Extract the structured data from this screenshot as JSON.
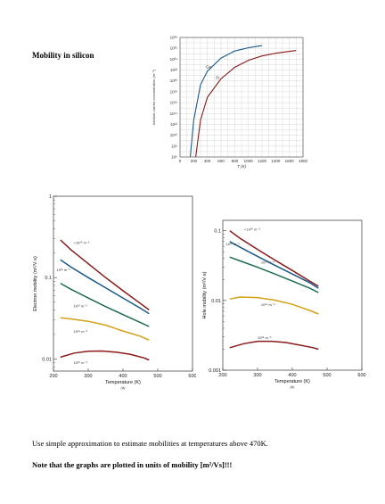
{
  "heading": "Mobility in silicon",
  "notes": {
    "line1": "Use simple approximation to estimate mobilities at temperatures above 470K.",
    "line2": "Note that the graphs are plotted in units of mobility [m²/Vs]!!!"
  },
  "chart_data": [
    {
      "type": "line",
      "title": "",
      "xlabel": "T (K)",
      "ylabel": "Intrinsic carrier concentration (m⁻³)",
      "xlim": [
        0,
        1800
      ],
      "ylim_log10": [
        6,
        28
      ],
      "x_ticks": [
        "0",
        "200",
        "400",
        "600",
        "800",
        "1000",
        "1200",
        "1400",
        "1600",
        "1800"
      ],
      "y_ticks": [
        "10⁶",
        "10⁸",
        "10¹⁰",
        "10¹²",
        "10¹⁴",
        "10¹⁶",
        "10¹⁸",
        "10²⁰",
        "10²²",
        "10²⁴",
        "10²⁶",
        "10²⁸"
      ],
      "series": [
        {
          "name": "Ge",
          "color": "#1a5a8a",
          "x": [
            150,
            200,
            300,
            400,
            600,
            800,
            1000,
            1200
          ],
          "log10_y": [
            6,
            12.7,
            19.3,
            21.8,
            24.2,
            25.5,
            26.1,
            26.5
          ]
        },
        {
          "name": "Si",
          "color": "#8b1a1a",
          "x": [
            230,
            300,
            400,
            600,
            800,
            1000,
            1200,
            1400,
            1700
          ],
          "log10_y": [
            6,
            12.8,
            17.0,
            20.4,
            22.5,
            23.8,
            24.6,
            25.1,
            25.6
          ]
        }
      ]
    },
    {
      "type": "line",
      "title": "",
      "caption": "(a)",
      "xlabel": "Temperature (K)",
      "ylabel": "Electron mobility (m²/V·s)",
      "xlim": [
        200,
        600
      ],
      "ylim_log10": [
        -2.15,
        0
      ],
      "x_ticks": [
        "200",
        "300",
        "400",
        "500",
        "600"
      ],
      "y_ticks": [
        "1",
        "0.1",
        "0.01"
      ],
      "series": [
        {
          "name": "<10²⁰ m⁻³",
          "color": "#8b1a1a",
          "x": [
            220,
            250,
            300,
            350,
            400,
            450,
            475
          ],
          "y": [
            0.29,
            0.22,
            0.148,
            0.1,
            0.069,
            0.048,
            0.04
          ]
        },
        {
          "name": "10²² m⁻³",
          "color": "#1a5a8a",
          "x": [
            220,
            250,
            300,
            350,
            400,
            450,
            475
          ],
          "y": [
            0.165,
            0.135,
            0.1,
            0.075,
            0.056,
            0.042,
            0.036
          ]
        },
        {
          "name": "10²³ m⁻³",
          "color": "#1e6b55",
          "x": [
            220,
            250,
            300,
            350,
            400,
            450,
            475
          ],
          "y": [
            0.085,
            0.072,
            0.056,
            0.044,
            0.035,
            0.028,
            0.025
          ]
        },
        {
          "name": "10²⁴ m⁻³",
          "color": "#d4a017",
          "x": [
            220,
            250,
            300,
            350,
            400,
            450,
            475
          ],
          "y": [
            0.032,
            0.031,
            0.029,
            0.026,
            0.022,
            0.019,
            0.017
          ]
        },
        {
          "name": "10²⁵ m⁻³",
          "color": "#8b1a1a",
          "x": [
            220,
            260,
            300,
            340,
            380,
            420,
            460,
            475
          ],
          "y": [
            0.0105,
            0.0118,
            0.0124,
            0.0125,
            0.0121,
            0.0114,
            0.0103,
            0.0097
          ]
        }
      ]
    },
    {
      "type": "line",
      "title": "",
      "caption": "(b)",
      "xlabel": "Temperature (K)",
      "ylabel": "Hole mobility (m²/V·s)",
      "xlim": [
        200,
        600
      ],
      "ylim_log10": [
        -3,
        -0.85
      ],
      "x_ticks": [
        "200",
        "300",
        "400",
        "500",
        "600"
      ],
      "y_ticks": [
        "0.1",
        "0.01",
        "0.001"
      ],
      "series": [
        {
          "name": "<10²⁰ m⁻³",
          "color": "#8b1a1a",
          "x": [
            220,
            250,
            300,
            350,
            400,
            450,
            475
          ],
          "y": [
            0.1,
            0.078,
            0.054,
            0.038,
            0.027,
            0.019,
            0.016
          ]
        },
        {
          "name": "10²² m⁻³",
          "color": "#1a5a8a",
          "x": [
            220,
            250,
            300,
            350,
            400,
            450,
            475
          ],
          "y": [
            0.07,
            0.058,
            0.043,
            0.032,
            0.024,
            0.018,
            0.015
          ]
        },
        {
          "name": "10²³ m⁻³",
          "color": "#1e6b55",
          "x": [
            220,
            250,
            300,
            350,
            400,
            450,
            475
          ],
          "y": [
            0.042,
            0.037,
            0.03,
            0.024,
            0.019,
            0.015,
            0.013
          ]
        },
        {
          "name": "10²⁴ m⁻³",
          "color": "#d4a017",
          "x": [
            220,
            250,
            300,
            350,
            400,
            450,
            475
          ],
          "y": [
            0.0105,
            0.0112,
            0.011,
            0.0101,
            0.0088,
            0.0072,
            0.0064
          ]
        },
        {
          "name": "10²⁵ m⁻³",
          "color": "#8b1a1a",
          "x": [
            220,
            260,
            300,
            340,
            380,
            420,
            460,
            475
          ],
          "y": [
            0.0021,
            0.0024,
            0.0026,
            0.0026,
            0.0025,
            0.0023,
            0.0021,
            0.002
          ]
        }
      ]
    }
  ]
}
